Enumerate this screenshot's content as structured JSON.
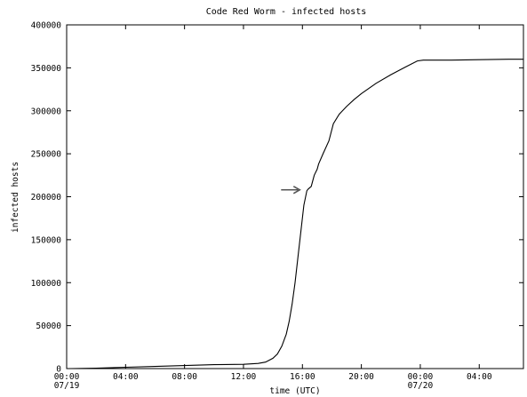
{
  "colors": {
    "background": "#ffffff",
    "line": "#000000",
    "arrow": "#555555"
  },
  "chart_data": {
    "type": "line",
    "title": "Code Red Worm - infected hosts",
    "xlabel": "time (UTC)",
    "ylabel": "infected hosts",
    "x_unit": "hours since 07/19 00:00 UTC",
    "xlim": [
      0,
      31
    ],
    "ylim": [
      0,
      400000
    ],
    "grid": false,
    "legend": "none",
    "x_ticks": [
      {
        "value": 0,
        "label": "00:00",
        "sublabel": "07/19"
      },
      {
        "value": 4,
        "label": "04:00",
        "sublabel": ""
      },
      {
        "value": 8,
        "label": "08:00",
        "sublabel": ""
      },
      {
        "value": 12,
        "label": "12:00",
        "sublabel": ""
      },
      {
        "value": 16,
        "label": "16:00",
        "sublabel": ""
      },
      {
        "value": 20,
        "label": "20:00",
        "sublabel": ""
      },
      {
        "value": 24,
        "label": "00:00",
        "sublabel": "07/20"
      },
      {
        "value": 28,
        "label": "04:00",
        "sublabel": ""
      }
    ],
    "y_ticks": [
      {
        "value": 0,
        "label": "0"
      },
      {
        "value": 50000,
        "label": "50000"
      },
      {
        "value": 100000,
        "label": "100000"
      },
      {
        "value": 150000,
        "label": "150000"
      },
      {
        "value": 200000,
        "label": "200000"
      },
      {
        "value": 250000,
        "label": "250000"
      },
      {
        "value": 300000,
        "label": "300000"
      },
      {
        "value": 350000,
        "label": "350000"
      },
      {
        "value": 400000,
        "label": "400000"
      }
    ],
    "series": [
      {
        "x": [
          0.3,
          2.0,
          4.0,
          6.0,
          8.0,
          10.0,
          12.0,
          13.0,
          13.5,
          14.0,
          14.3,
          14.6,
          14.9,
          15.1,
          15.3,
          15.5,
          15.7,
          15.9,
          16.1,
          16.3,
          16.4,
          16.6,
          16.8,
          17.0,
          17.1,
          17.4,
          17.8,
          18.1,
          18.5,
          19.0,
          19.5,
          20.0,
          21.0,
          22.0,
          23.0,
          23.8,
          24.2,
          26.0,
          28.0,
          30.0,
          31.0
        ],
        "y": [
          0,
          500,
          1500,
          2500,
          3500,
          4500,
          5000,
          6000,
          7500,
          12000,
          17000,
          26000,
          40000,
          55000,
          75000,
          100000,
          130000,
          160000,
          190000,
          207000,
          209000,
          212000,
          225000,
          232000,
          238000,
          250000,
          265000,
          285000,
          296000,
          305000,
          313000,
          320000,
          332000,
          342000,
          351000,
          358000,
          359000,
          359000,
          359500,
          360000,
          360000
        ]
      }
    ],
    "annotations": [
      {
        "type": "arrow",
        "target_x": 16.0,
        "target_y": 208000
      }
    ]
  }
}
